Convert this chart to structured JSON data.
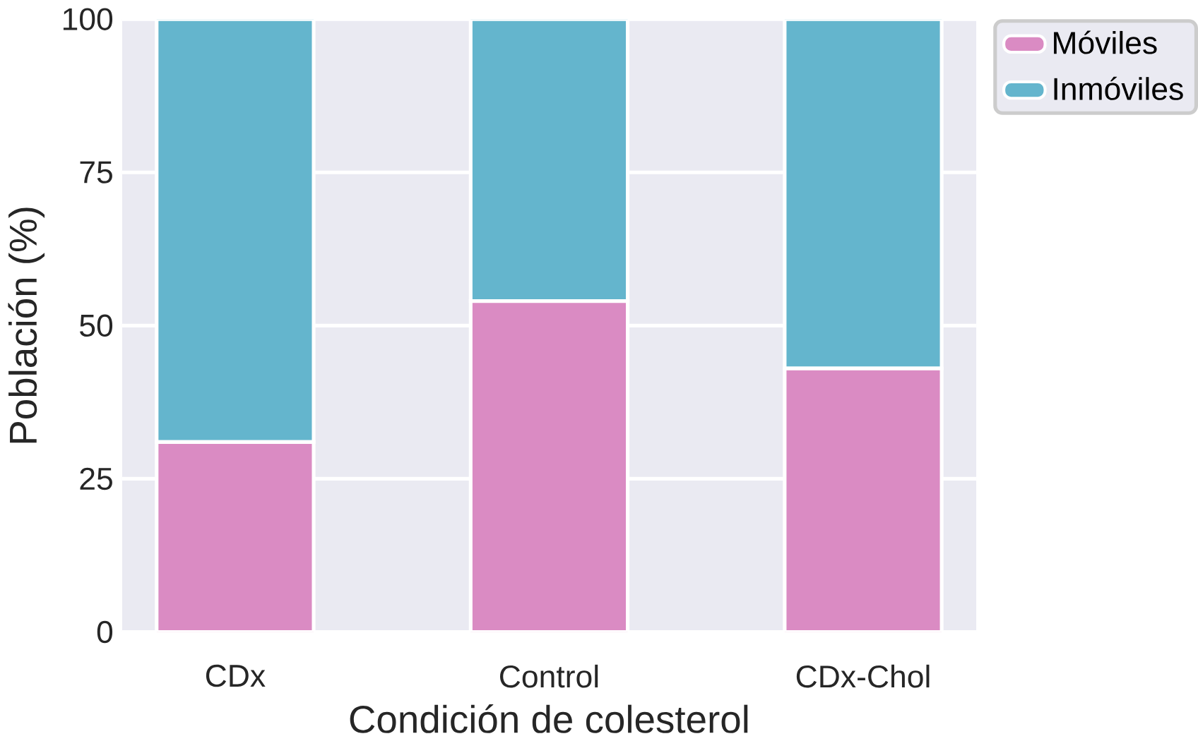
{
  "chart_data": {
    "type": "bar",
    "stacked": true,
    "categories": [
      "CDx",
      "Control",
      "CDx-Chol"
    ],
    "series": [
      {
        "name": "Móviles",
        "color": "#da8bc3",
        "values": [
          31,
          54,
          43
        ]
      },
      {
        "name": "Inmóviles",
        "color": "#64b5cd",
        "values": [
          69,
          46,
          57
        ]
      }
    ],
    "xlabel": "Condición de colesterol",
    "ylabel": "Población (%)",
    "ylim": [
      0,
      100
    ],
    "yticks": [
      0,
      25,
      50,
      75,
      100
    ],
    "grid": "y",
    "legend": "top right"
  }
}
